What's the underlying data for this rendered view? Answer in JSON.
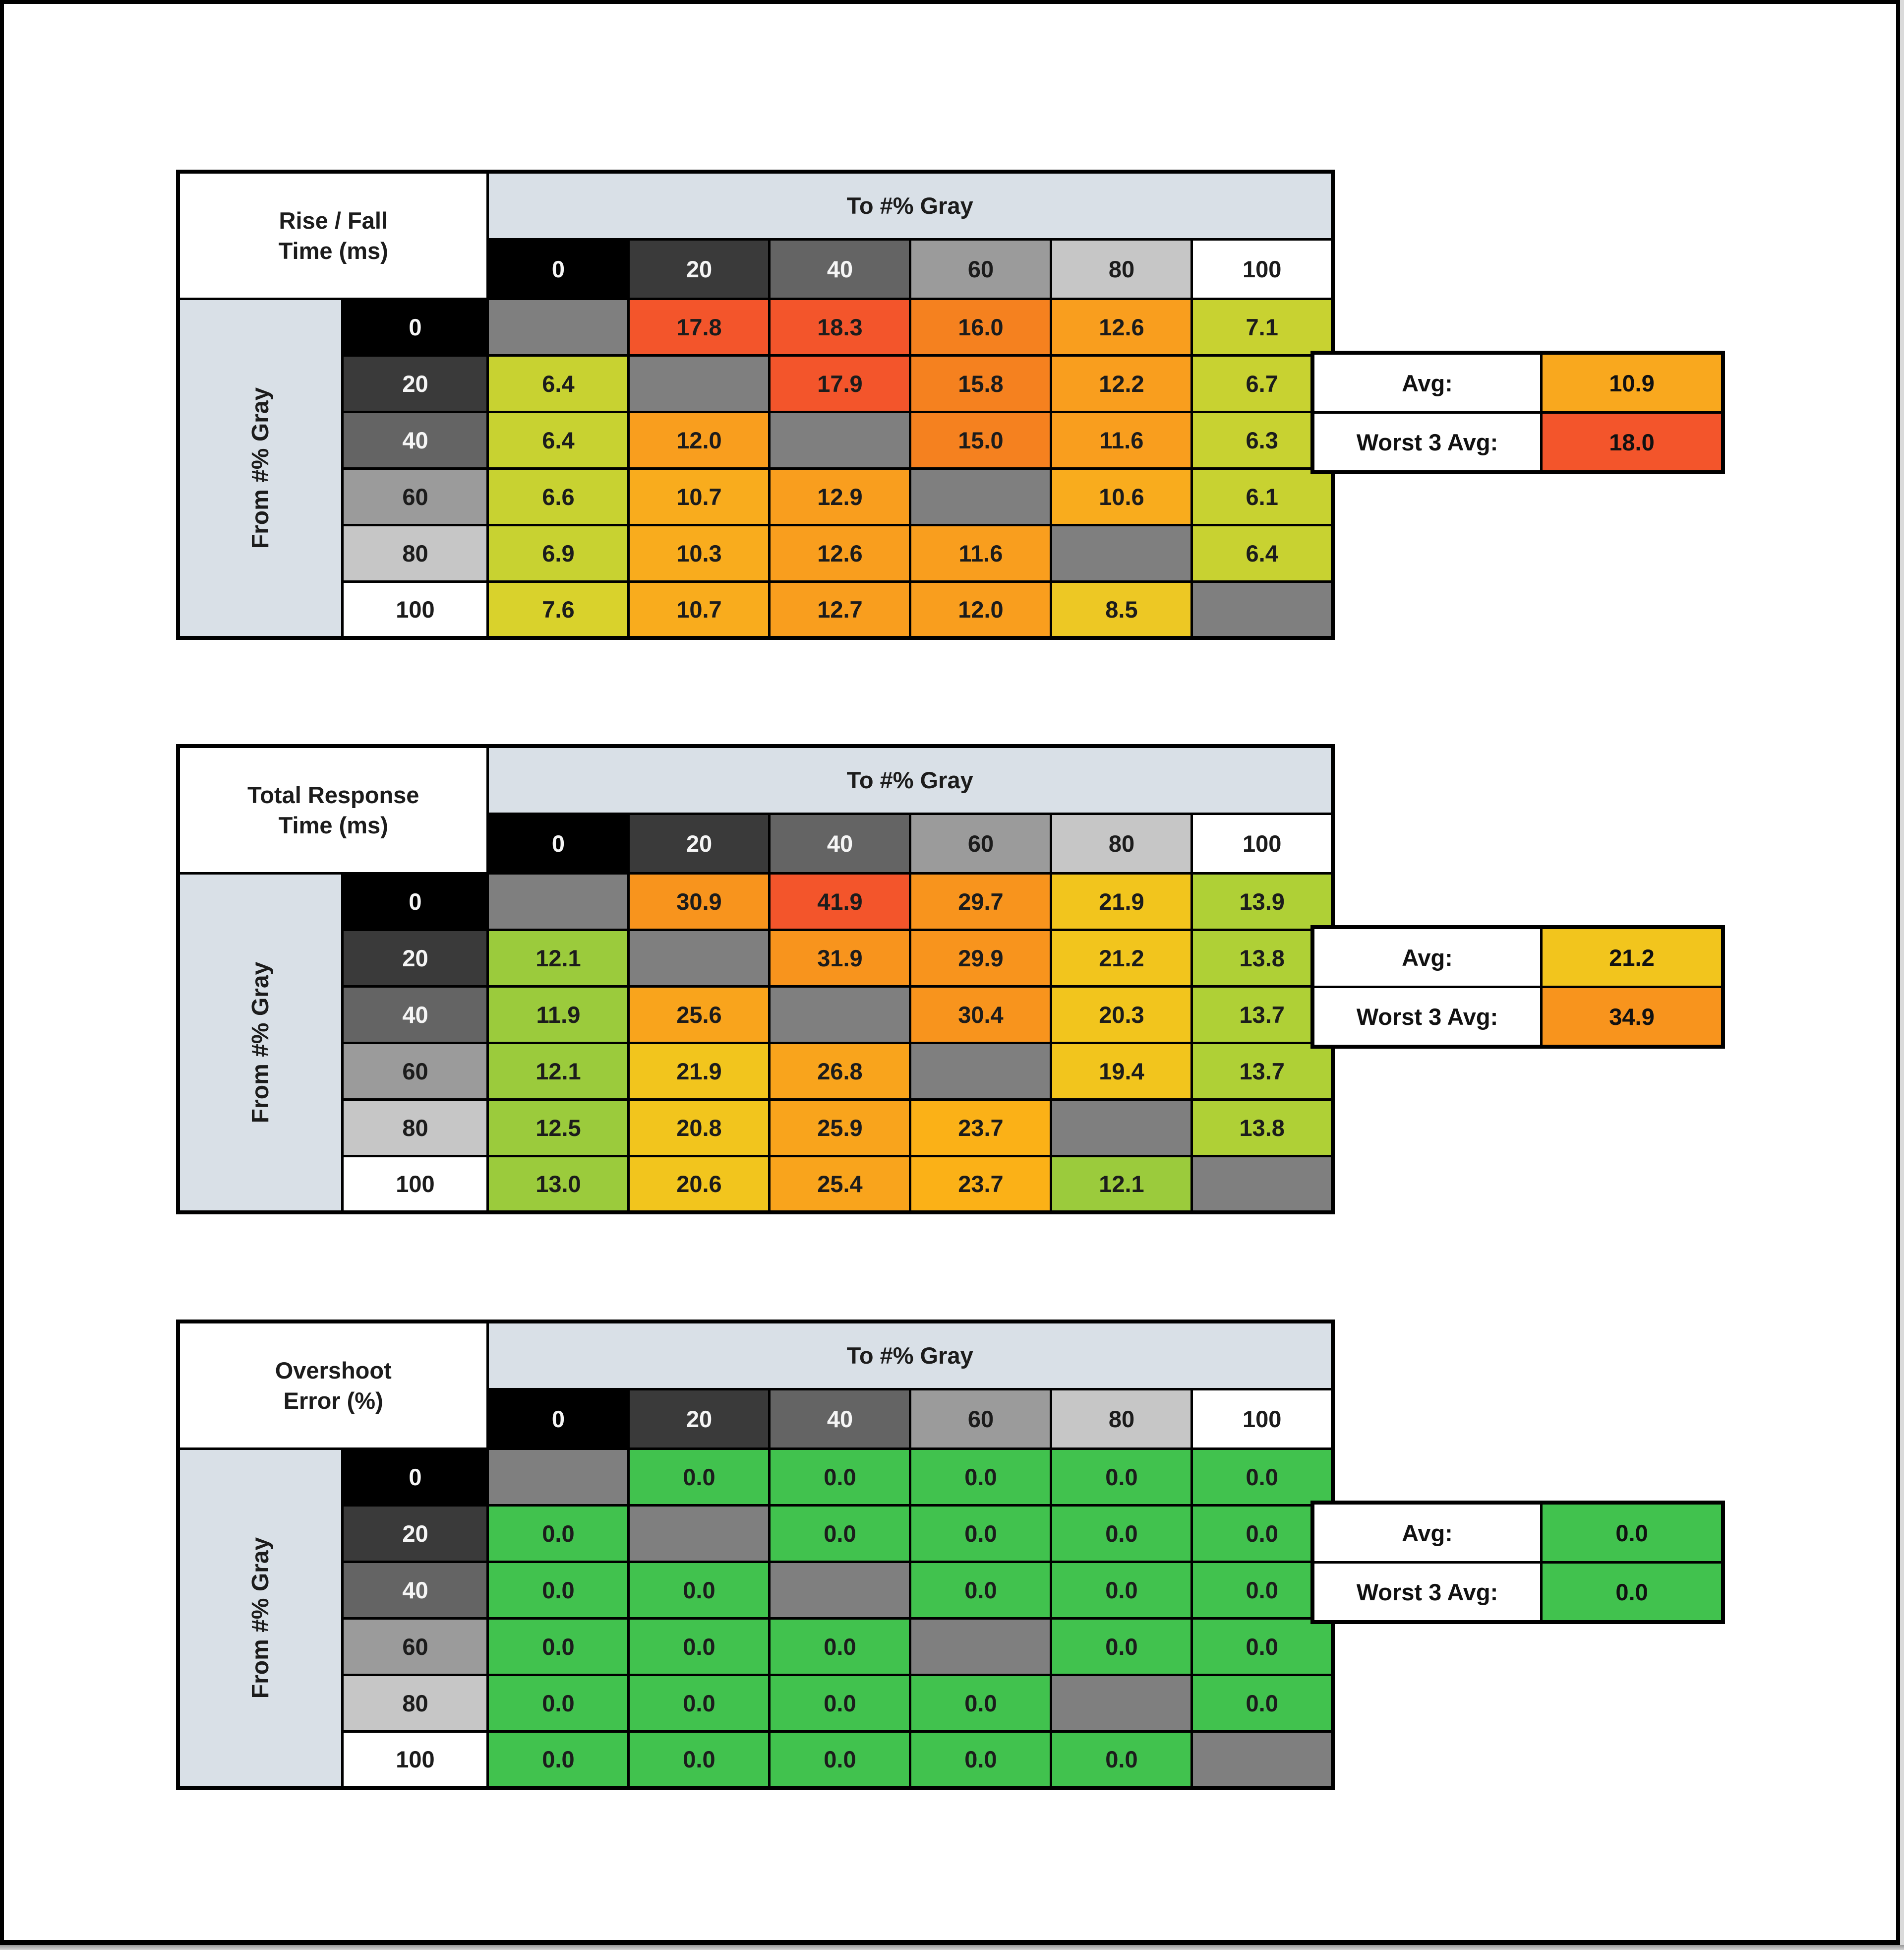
{
  "page": {
    "background": "#FFFFFF",
    "frame_color": "#000000",
    "right_strip_color": "#DADADA",
    "bottom_bar_top": "#989898",
    "bottom_bar_bottom": "#D4D4D4"
  },
  "palette": {
    "header_band": "#D9E0E7",
    "diagonal_blank": "#7F7F7F",
    "grid_line": "#000000",
    "gray_headers": [
      "#000000",
      "#3A3A3A",
      "#646464",
      "#9B9B9B",
      "#C6C6C6",
      "#FFFFFF"
    ],
    "gray_header_text": [
      "#F5F5F5",
      "#F5F5F5",
      "#F5F5F5",
      "#1C1C1C",
      "#1C1C1C",
      "#1C1C1C"
    ]
  },
  "chart_data": [
    {
      "type": "heatmap",
      "id": "rise-fall-time",
      "title": "Rise / Fall Time (ms)",
      "title_line1": "Rise / Fall",
      "title_line2": "Time (ms)",
      "col_axis_label": "To #% Gray",
      "row_axis_label": "From #% Gray",
      "columns": [
        "0",
        "20",
        "40",
        "60",
        "80",
        "100"
      ],
      "rows": [
        "0",
        "20",
        "40",
        "60",
        "80",
        "100"
      ],
      "values": [
        [
          null,
          "17.8",
          "18.3",
          "16.0",
          "12.6",
          "7.1"
        ],
        [
          "6.4",
          null,
          "17.9",
          "15.8",
          "12.2",
          "6.7"
        ],
        [
          "6.4",
          "12.0",
          null,
          "15.0",
          "11.6",
          "6.3"
        ],
        [
          "6.6",
          "10.7",
          "12.9",
          null,
          "10.6",
          "6.1"
        ],
        [
          "6.9",
          "10.3",
          "12.6",
          "11.6",
          null,
          "6.4"
        ],
        [
          "7.6",
          "10.7",
          "12.7",
          "12.0",
          "8.5",
          null
        ]
      ],
      "cell_colors": [
        [
          null,
          "#F3552B",
          "#F3552B",
          "#F5811F",
          "#F99E1E",
          "#C8D231"
        ],
        [
          "#C8D231",
          null,
          "#F3552B",
          "#F5811F",
          "#F99E1E",
          "#C8D231"
        ],
        [
          "#C8D231",
          "#F99E1E",
          null,
          "#F5811F",
          "#F99E1E",
          "#C8D231"
        ],
        [
          "#C8D231",
          "#F9AC1D",
          "#F99E1E",
          null,
          "#F9AC1D",
          "#C8D231"
        ],
        [
          "#C8D231",
          "#F9AC1D",
          "#F99E1E",
          "#F99E1E",
          null,
          "#C8D231"
        ],
        [
          "#D9D22C",
          "#F9AC1D",
          "#F99E1E",
          "#F99E1E",
          "#EDC824",
          null
        ]
      ],
      "avg": {
        "label": "Avg:",
        "value": "10.9",
        "color": "#F9A81E"
      },
      "worst": {
        "label": "Worst 3 Avg:",
        "value": "18.0",
        "color": "#F3552B"
      }
    },
    {
      "type": "heatmap",
      "id": "total-response-time",
      "title": "Total Response Time (ms)",
      "title_line1": "Total Response",
      "title_line2": "Time (ms)",
      "col_axis_label": "To #% Gray",
      "row_axis_label": "From #% Gray",
      "columns": [
        "0",
        "20",
        "40",
        "60",
        "80",
        "100"
      ],
      "rows": [
        "0",
        "20",
        "40",
        "60",
        "80",
        "100"
      ],
      "values": [
        [
          null,
          "30.9",
          "41.9",
          "29.7",
          "21.9",
          "13.9"
        ],
        [
          "12.1",
          null,
          "31.9",
          "29.9",
          "21.2",
          "13.8"
        ],
        [
          "11.9",
          "25.6",
          null,
          "30.4",
          "20.3",
          "13.7"
        ],
        [
          "12.1",
          "21.9",
          "26.8",
          null,
          "19.4",
          "13.7"
        ],
        [
          "12.5",
          "20.8",
          "25.9",
          "23.7",
          null,
          "13.8"
        ],
        [
          "13.0",
          "20.6",
          "25.4",
          "23.7",
          "12.1",
          null
        ]
      ],
      "cell_colors": [
        [
          null,
          "#F8941D",
          "#F3552B",
          "#F8941D",
          "#F2C51D",
          "#AFD036"
        ],
        [
          "#9BCB3C",
          null,
          "#F8941D",
          "#F8941D",
          "#F2C51D",
          "#AFD036"
        ],
        [
          "#9BCB3C",
          "#F9A41C",
          null,
          "#F8941D",
          "#F2C51D",
          "#AFD036"
        ],
        [
          "#9BCB3C",
          "#F2C51D",
          "#F9A41C",
          null,
          "#F2C51D",
          "#AFD036"
        ],
        [
          "#9BCB3C",
          "#F2C51D",
          "#F9A41C",
          "#FBB117",
          null,
          "#AFD036"
        ],
        [
          "#9BCB3C",
          "#F2C51D",
          "#F9A41C",
          "#FBB117",
          "#9BCB3C",
          null
        ]
      ],
      "avg": {
        "label": "Avg:",
        "value": "21.2",
        "color": "#F2C51D"
      },
      "worst": {
        "label": "Worst 3 Avg:",
        "value": "34.9",
        "color": "#F8941D"
      }
    },
    {
      "type": "heatmap",
      "id": "overshoot-error",
      "title": "Overshoot Error (%)",
      "title_line1": "Overshoot",
      "title_line2": "Error (%)",
      "col_axis_label": "To #% Gray",
      "row_axis_label": "From #% Gray",
      "columns": [
        "0",
        "20",
        "40",
        "60",
        "80",
        "100"
      ],
      "rows": [
        "0",
        "20",
        "40",
        "60",
        "80",
        "100"
      ],
      "values": [
        [
          null,
          "0.0",
          "0.0",
          "0.0",
          "0.0",
          "0.0"
        ],
        [
          "0.0",
          null,
          "0.0",
          "0.0",
          "0.0",
          "0.0"
        ],
        [
          "0.0",
          "0.0",
          null,
          "0.0",
          "0.0",
          "0.0"
        ],
        [
          "0.0",
          "0.0",
          "0.0",
          null,
          "0.0",
          "0.0"
        ],
        [
          "0.0",
          "0.0",
          "0.0",
          "0.0",
          null,
          "0.0"
        ],
        [
          "0.0",
          "0.0",
          "0.0",
          "0.0",
          "0.0",
          null
        ]
      ],
      "cell_colors": [
        [
          null,
          "#41C24E",
          "#41C24E",
          "#41C24E",
          "#41C24E",
          "#41C24E"
        ],
        [
          "#41C24E",
          null,
          "#41C24E",
          "#41C24E",
          "#41C24E",
          "#41C24E"
        ],
        [
          "#41C24E",
          "#41C24E",
          null,
          "#41C24E",
          "#41C24E",
          "#41C24E"
        ],
        [
          "#41C24E",
          "#41C24E",
          "#41C24E",
          null,
          "#41C24E",
          "#41C24E"
        ],
        [
          "#41C24E",
          "#41C24E",
          "#41C24E",
          "#41C24E",
          null,
          "#41C24E"
        ],
        [
          "#41C24E",
          "#41C24E",
          "#41C24E",
          "#41C24E",
          "#41C24E",
          null
        ]
      ],
      "avg": {
        "label": "Avg:",
        "value": "0.0",
        "color": "#41C24E"
      },
      "worst": {
        "label": "Worst 3 Avg:",
        "value": "0.0",
        "color": "#41C24E"
      }
    }
  ]
}
